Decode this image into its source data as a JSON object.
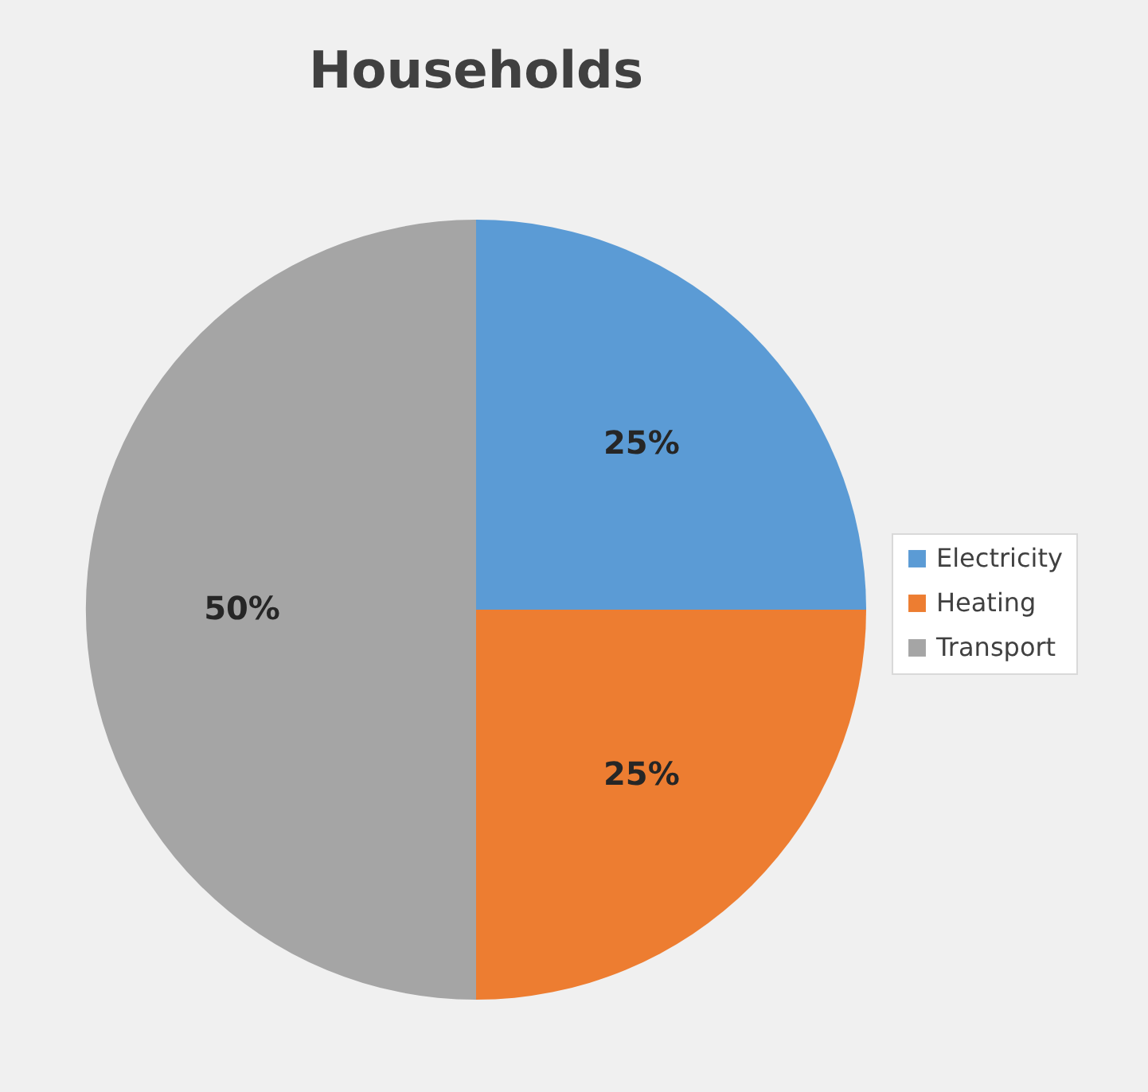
{
  "chart_data": {
    "type": "pie",
    "title": "Households",
    "categories": [
      "Electricity",
      "Heating",
      "Transport"
    ],
    "values": [
      25,
      25,
      50
    ],
    "colors": [
      "#5b9bd5",
      "#ed7d31",
      "#a5a5a5"
    ],
    "value_labels": [
      "25%",
      "25%",
      "50%"
    ],
    "legend": "right"
  }
}
